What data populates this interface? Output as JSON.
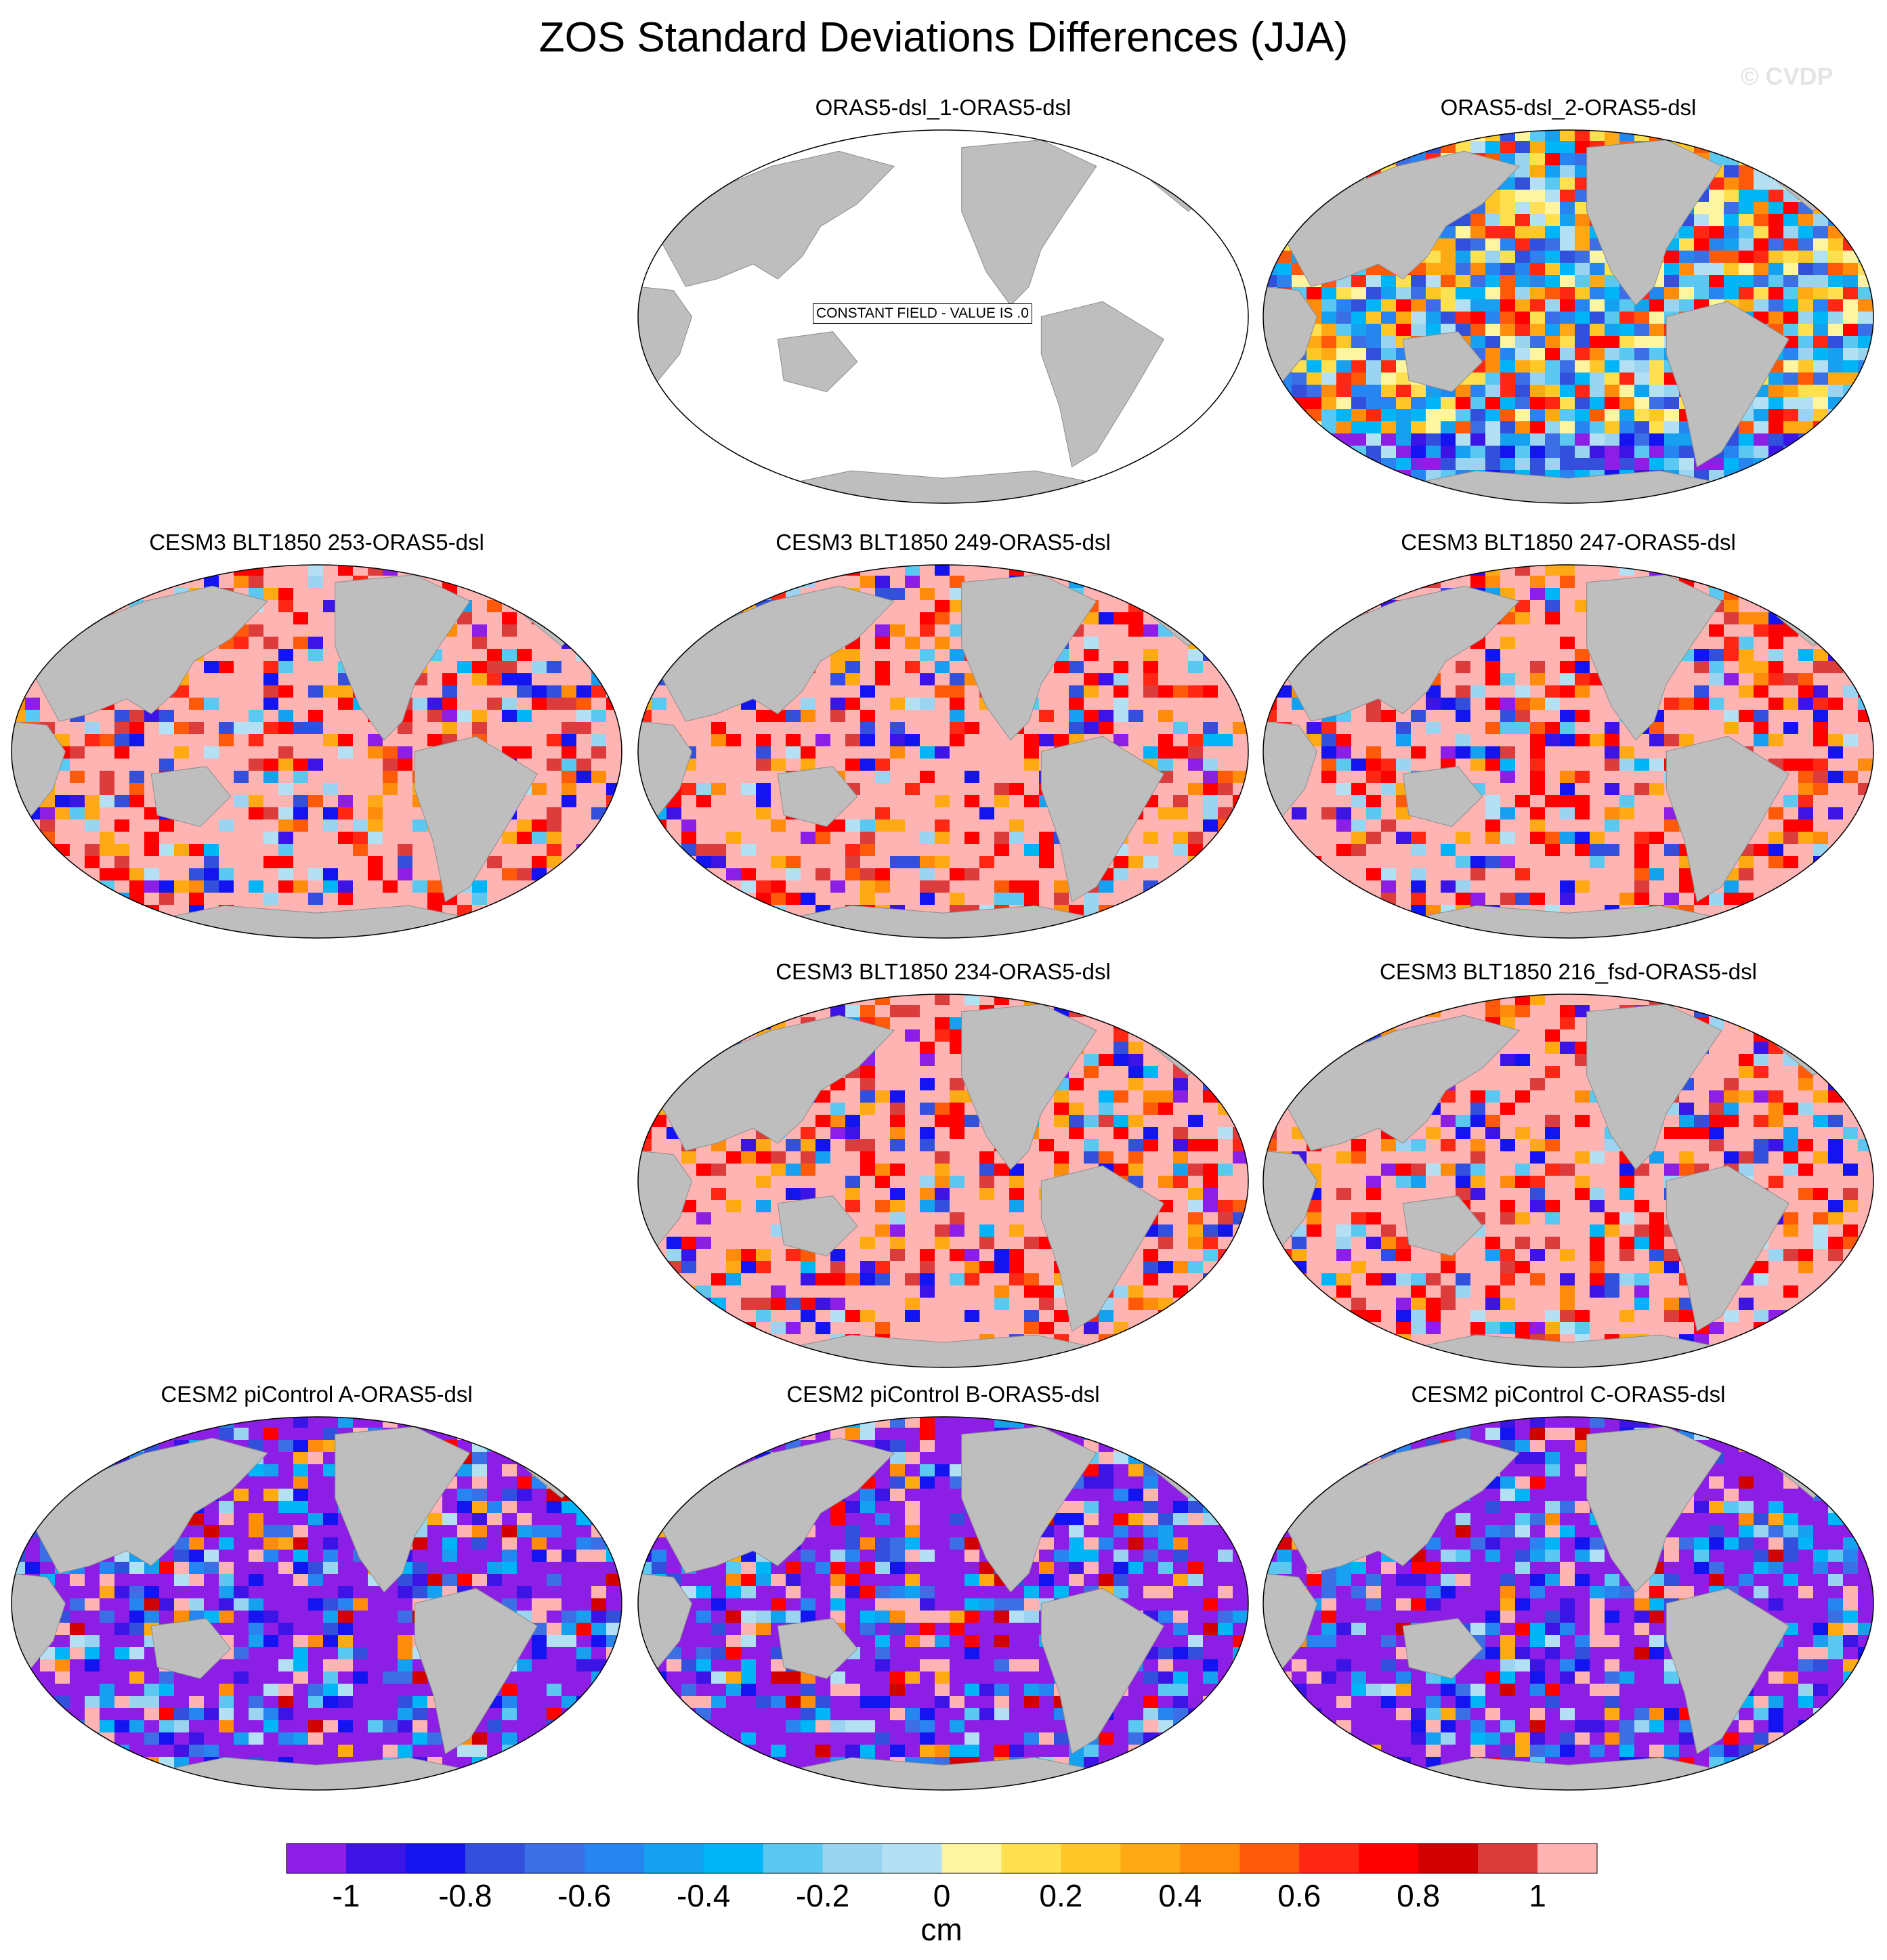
{
  "title": "ZOS Standard Deviations Differences (JJA)",
  "watermark": "© CVDP",
  "constant_field_note": "CONSTANT FIELD - VALUE IS .0",
  "panels": [
    {
      "title": "ORAS5-dsl_1-ORAS5-dsl",
      "row": 0,
      "col": 1,
      "style": "constant"
    },
    {
      "title": "ORAS5-dsl_2-ORAS5-dsl",
      "row": 0,
      "col": 2,
      "style": "mixed"
    },
    {
      "title": "CESM3 BLT1850 253-ORAS5-dsl",
      "row": 1,
      "col": 0,
      "style": "positive"
    },
    {
      "title": "CESM3 BLT1850 249-ORAS5-dsl",
      "row": 1,
      "col": 1,
      "style": "positive"
    },
    {
      "title": "CESM3 BLT1850 247-ORAS5-dsl",
      "row": 1,
      "col": 2,
      "style": "positive"
    },
    {
      "title": "CESM3 BLT1850 234-ORAS5-dsl",
      "row": 2,
      "col": 1,
      "style": "positive"
    },
    {
      "title": "CESM3 BLT1850 216_fsd-ORAS5-dsl",
      "row": 2,
      "col": 2,
      "style": "positive"
    },
    {
      "title": "CESM2 piControl A-ORAS5-dsl",
      "row": 3,
      "col": 0,
      "style": "negative"
    },
    {
      "title": "CESM2 piControl B-ORAS5-dsl",
      "row": 3,
      "col": 1,
      "style": "negative"
    },
    {
      "title": "CESM2 piControl C-ORAS5-dsl",
      "row": 3,
      "col": 2,
      "style": "negative"
    }
  ],
  "colorbar": {
    "unit": "cm",
    "tick_labels": [
      "-1",
      "-0.8",
      "-0.6",
      "-0.4",
      "-0.2",
      "0",
      "0.2",
      "0.4",
      "0.6",
      "0.8",
      "1"
    ],
    "colors": [
      "#8c1ee6",
      "#3c14e6",
      "#1414f0",
      "#3250dc",
      "#3c6ee6",
      "#2884f0",
      "#16a0f0",
      "#00b4f8",
      "#5ac8f0",
      "#9ad4f0",
      "#b4e0f4",
      "#fff5a0",
      "#ffe050",
      "#ffc828",
      "#ffaa14",
      "#ff8c0a",
      "#ff5a0a",
      "#ff2814",
      "#ff0000",
      "#d20000",
      "#dc3c3c",
      "#ffb4b4"
    ]
  },
  "colors": {
    "land": "#bebebe",
    "ocean_constant": "#ffffff"
  }
}
